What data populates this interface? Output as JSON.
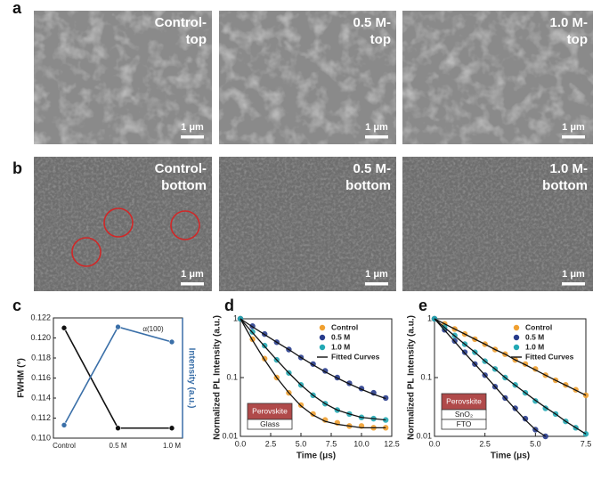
{
  "panel_labels": [
    "a",
    "b",
    "c",
    "d",
    "e"
  ],
  "sem": {
    "rows": [
      {
        "images": [
          {
            "label": [
              "Control-",
              "top"
            ],
            "scale": "1 μm"
          },
          {
            "label": [
              "0.5 M-",
              "top"
            ],
            "scale": "1 μm"
          },
          {
            "label": [
              "1.0 M-",
              "top"
            ],
            "scale": "1 μm"
          }
        ]
      },
      {
        "images": [
          {
            "label": [
              "Control-",
              "bottom"
            ],
            "scale": "1 μm"
          },
          {
            "label": [
              "0.5 M-",
              "bottom"
            ],
            "scale": "1 μm"
          },
          {
            "label": [
              "1.0 M-",
              "bottom"
            ],
            "scale": "1 μm"
          }
        ]
      }
    ]
  },
  "chart_data": [
    {
      "type": "line",
      "categories": [
        "Control",
        "0.5 M",
        "1.0 M"
      ],
      "ylabel": "FWHM (°)",
      "y2label": "Intensity (a.u.)",
      "annotation": "α(100)",
      "ylim": [
        0.11,
        0.122
      ],
      "yticks": [
        {
          "value": 0.11,
          "label": "0.110"
        },
        {
          "value": 0.112,
          "label": "0.112"
        },
        {
          "value": 0.114,
          "label": "0.114"
        },
        {
          "value": 0.116,
          "label": "0.116"
        },
        {
          "value": 0.118,
          "label": "0.118"
        },
        {
          "value": 0.12,
          "label": "0.120"
        },
        {
          "value": 0.122,
          "label": "0.122"
        }
      ],
      "y2lim": [
        0.11,
        0.122
      ],
      "y2color": "#3a6fa8",
      "series": [
        {
          "color": "#111111",
          "values": [
            0.121,
            0.111,
            0.111
          ]
        },
        {
          "color": "#3a6fa8",
          "axis": "y2",
          "values": [
            0.1113,
            0.1211,
            0.1196
          ]
        }
      ]
    },
    {
      "type": "scatter",
      "log_y": true,
      "legend": "upper right",
      "xlabel": "Time (μs)",
      "ylabel": "Normalized PL Intensity (a.u.)",
      "fit_label": "Fitted Curves",
      "inset": [
        "Perovskite",
        "Glass"
      ],
      "xlim": [
        0,
        12.5
      ],
      "xticks": [
        {
          "value": 0,
          "label": "0.0"
        },
        2.5,
        {
          "value": 5,
          "label": "5.0"
        },
        7.5,
        {
          "value": 10,
          "label": "10.0"
        },
        12.5
      ],
      "ylim": [
        0.01,
        1
      ],
      "yticks": [
        0.01,
        0.1,
        1
      ],
      "x": [
        0,
        1,
        2,
        3,
        4,
        5,
        6,
        7,
        8,
        9,
        10,
        11,
        12
      ],
      "series": [
        {
          "name": "Control",
          "color": "#f0a030",
          "values": [
            1,
            0.45,
            0.21,
            0.1,
            0.055,
            0.034,
            0.024,
            0.019,
            0.017,
            0.015,
            0.015,
            0.014,
            0.014
          ],
          "fit": [
            1,
            0.43,
            0.2,
            0.1,
            0.055,
            0.033,
            0.023,
            0.018,
            0.016,
            0.015,
            0.014,
            0.014,
            0.014
          ]
        },
        {
          "name": "0.5 M",
          "color": "#283c8c",
          "values": [
            1,
            0.75,
            0.55,
            0.4,
            0.3,
            0.22,
            0.17,
            0.13,
            0.1,
            0.08,
            0.065,
            0.055,
            0.045
          ],
          "fit": [
            1,
            0.73,
            0.54,
            0.4,
            0.3,
            0.22,
            0.165,
            0.125,
            0.098,
            0.078,
            0.063,
            0.052,
            0.044
          ]
        },
        {
          "name": "1.0 M",
          "color": "#22a8b4",
          "values": [
            1,
            0.6,
            0.35,
            0.2,
            0.12,
            0.075,
            0.05,
            0.036,
            0.028,
            0.024,
            0.021,
            0.02,
            0.019
          ],
          "fit": [
            1,
            0.58,
            0.34,
            0.2,
            0.12,
            0.075,
            0.05,
            0.036,
            0.028,
            0.024,
            0.021,
            0.02,
            0.019
          ]
        }
      ]
    },
    {
      "type": "scatter",
      "log_y": true,
      "legend": "upper right",
      "xlabel": "Time (μs)",
      "ylabel": "Normalized PL Intensity (a.u.)",
      "fit_label": "Fitted Curves",
      "inset": [
        "Perovskite",
        "SnO₂",
        "FTO"
      ],
      "xlim": [
        0,
        7.5
      ],
      "xticks": [
        {
          "value": 0,
          "label": "0.0"
        },
        2.5,
        {
          "value": 5,
          "label": "5.0"
        },
        7.5
      ],
      "ylim": [
        0.01,
        1
      ],
      "yticks": [
        0.01,
        0.1,
        1
      ],
      "x": [
        0,
        0.5,
        1,
        1.5,
        2,
        2.5,
        3,
        3.5,
        4,
        4.5,
        5,
        5.5,
        6,
        6.5,
        7,
        7.5
      ],
      "series": [
        {
          "name": "Control",
          "color": "#f0a030",
          "values": [
            1,
            0.82,
            0.67,
            0.55,
            0.45,
            0.37,
            0.3,
            0.25,
            0.2,
            0.17,
            0.14,
            0.11,
            0.09,
            0.075,
            0.062,
            0.05
          ],
          "fit": [
            1,
            0.82,
            0.67,
            0.55,
            0.45,
            0.37,
            0.3,
            0.25,
            0.2,
            0.165,
            0.135,
            0.11,
            0.09,
            0.074,
            0.061,
            0.05
          ]
        },
        {
          "name": "0.5 M",
          "color": "#283c8c",
          "values": [
            1,
            0.65,
            0.42,
            0.27,
            0.17,
            0.11,
            0.07,
            0.045,
            0.03,
            0.02,
            0.013,
            0.01,
            null,
            null,
            null,
            null
          ],
          "fit": [
            1,
            0.64,
            0.41,
            0.26,
            0.17,
            0.11,
            0.07,
            0.045,
            0.029,
            0.019,
            0.013,
            0.01,
            null,
            null,
            null,
            null
          ]
        },
        {
          "name": "1.0 M",
          "color": "#22a8b4",
          "values": [
            1,
            0.72,
            0.52,
            0.37,
            0.27,
            0.19,
            0.14,
            0.1,
            0.075,
            0.055,
            0.04,
            0.03,
            0.024,
            0.018,
            0.014,
            0.011
          ],
          "fit": [
            1,
            0.71,
            0.51,
            0.37,
            0.27,
            0.19,
            0.14,
            0.1,
            0.074,
            0.055,
            0.041,
            0.031,
            0.024,
            0.018,
            0.014,
            0.011
          ]
        }
      ]
    }
  ]
}
